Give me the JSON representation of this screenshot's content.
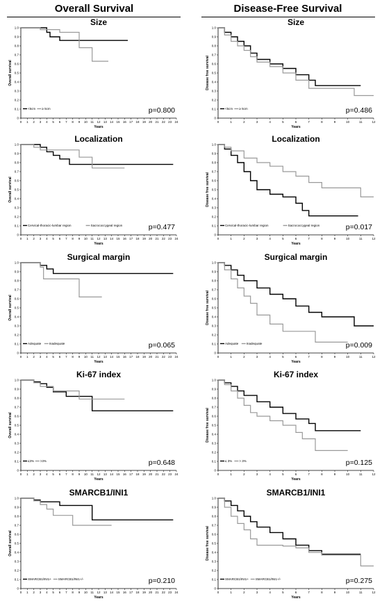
{
  "columns": {
    "left": "Overall Survival",
    "right": "Disease-Free Survival"
  },
  "style": {
    "series_colors": [
      "#000000",
      "#999999"
    ]
  },
  "chart_data": [
    {
      "type": "line",
      "title": "Size",
      "ylabel": "Overall survival",
      "xlabel": "Years",
      "p": "p=0.800",
      "xlim": [
        0,
        24
      ],
      "ylim": [
        0,
        1
      ],
      "xticks": [
        0,
        1,
        2,
        3,
        4,
        5,
        6,
        7,
        8,
        9,
        10,
        11,
        12,
        13,
        14,
        15,
        16,
        17,
        18,
        19,
        20,
        21,
        22,
        23,
        24
      ],
      "yticks": [
        "0",
        "0.1",
        "0.2",
        "0.3",
        "0.4",
        "0.5",
        "0.6",
        "0.7",
        "0.8",
        "0.9",
        "1.0"
      ],
      "legend": [
        "<5cm",
        "≥ 5cm"
      ],
      "series": [
        {
          "name": "<5cm",
          "x": [
            0,
            4,
            4.5,
            6,
            16.5
          ],
          "y": [
            1,
            0.95,
            0.9,
            0.86,
            0.86
          ]
        },
        {
          "name": "≥ 5cm",
          "x": [
            0,
            3,
            6,
            9,
            11,
            13.5
          ],
          "y": [
            1,
            0.98,
            0.95,
            0.78,
            0.63,
            0.63
          ]
        }
      ]
    },
    {
      "type": "line",
      "title": "Size",
      "ylabel": "Disease free survival",
      "xlabel": "Years",
      "p": "p=0.486",
      "xlim": [
        0,
        12
      ],
      "ylim": [
        0,
        1
      ],
      "xticks": [
        0,
        1,
        2,
        3,
        4,
        5,
        6,
        7,
        8,
        9,
        10,
        11,
        12
      ],
      "yticks": [
        "0",
        "0.1",
        "0.2",
        "0.3",
        "0.4",
        "0.5",
        "0.6",
        "0.7",
        "0.8",
        "0.9",
        "1.0"
      ],
      "legend": [
        "<5cm",
        "≥ 5cm"
      ],
      "series": [
        {
          "name": "<5cm",
          "x": [
            0,
            0.5,
            1,
            1.5,
            2,
            2.5,
            3,
            4,
            5,
            6,
            7,
            7.5,
            11
          ],
          "y": [
            1,
            0.95,
            0.9,
            0.85,
            0.8,
            0.72,
            0.65,
            0.6,
            0.55,
            0.48,
            0.42,
            0.36,
            0.36
          ]
        },
        {
          "name": "≥ 5cm",
          "x": [
            0,
            0.5,
            1,
            1.5,
            2,
            2.5,
            3,
            4,
            5,
            6,
            7,
            10.5,
            12
          ],
          "y": [
            1,
            0.92,
            0.85,
            0.8,
            0.75,
            0.68,
            0.62,
            0.57,
            0.5,
            0.42,
            0.33,
            0.25,
            0.25
          ]
        }
      ]
    },
    {
      "type": "line",
      "title": "Localization",
      "ylabel": "Overall survival",
      "xlabel": "Years",
      "p": "p=0.477",
      "xlim": [
        0,
        24
      ],
      "ylim": [
        0,
        1
      ],
      "xticks": [
        0,
        1,
        2,
        3,
        4,
        5,
        6,
        7,
        8,
        9,
        10,
        11,
        12,
        13,
        14,
        15,
        16,
        17,
        18,
        19,
        20,
        21,
        22,
        23,
        24
      ],
      "yticks": [
        "0",
        "0.1",
        "0.2",
        "0.3",
        "0.4",
        "0.5",
        "0.6",
        "0.7",
        "0.8",
        "0.9",
        "1.0"
      ],
      "legend": [
        "Cervical-thoracic-lumbar region",
        "Sacrococcygeal region"
      ],
      "series": [
        {
          "name": "Cervical-thoracic-lumbar region",
          "x": [
            0,
            3,
            4,
            5,
            6,
            7.5,
            23.5
          ],
          "y": [
            1,
            0.97,
            0.92,
            0.88,
            0.84,
            0.78,
            0.78
          ]
        },
        {
          "name": "Sacrococcygeal region",
          "x": [
            0,
            2,
            3,
            9,
            11,
            16
          ],
          "y": [
            1,
            0.97,
            0.94,
            0.86,
            0.74,
            0.74
          ]
        }
      ]
    },
    {
      "type": "line",
      "title": "Localization",
      "ylabel": "Disease free survival",
      "xlabel": "Years",
      "p": "p=0.017",
      "xlim": [
        0,
        12
      ],
      "ylim": [
        0,
        1
      ],
      "xticks": [
        0,
        1,
        2,
        3,
        4,
        5,
        6,
        7,
        8,
        9,
        10,
        11,
        12
      ],
      "yticks": [
        "0",
        "0.1",
        "0.2",
        "0.3",
        "0.4",
        "0.5",
        "0.6",
        "0.7",
        "0.8",
        "0.9",
        "1.0"
      ],
      "legend": [
        "Cervical-thoracic-lumbar region",
        "Sacrococcygeal region"
      ],
      "series": [
        {
          "name": "Cervical-thoracic-lumbar region",
          "x": [
            0,
            0.5,
            1,
            1.5,
            2,
            2.5,
            3,
            4,
            5,
            6,
            6.5,
            7,
            10.8
          ],
          "y": [
            1,
            0.95,
            0.88,
            0.8,
            0.7,
            0.6,
            0.5,
            0.45,
            0.42,
            0.35,
            0.27,
            0.21,
            0.21
          ]
        },
        {
          "name": "Sacrococcygeal region",
          "x": [
            0,
            0.5,
            1,
            2,
            3,
            4,
            5,
            6,
            7,
            8,
            10,
            11,
            12
          ],
          "y": [
            1,
            0.97,
            0.93,
            0.85,
            0.8,
            0.76,
            0.7,
            0.65,
            0.58,
            0.52,
            0.52,
            0.42,
            0.42
          ]
        }
      ]
    },
    {
      "type": "line",
      "title": "Surgical margin",
      "ylabel": "Overall survival",
      "xlabel": "Years",
      "p": "p=0.065",
      "xlim": [
        0,
        24
      ],
      "ylim": [
        0,
        1
      ],
      "xticks": [
        0,
        1,
        2,
        3,
        4,
        5,
        6,
        7,
        8,
        9,
        10,
        11,
        12,
        13,
        14,
        15,
        16,
        17,
        18,
        19,
        20,
        21,
        22,
        23,
        24
      ],
      "yticks": [
        "0",
        "0.1",
        "0.2",
        "0.3",
        "0.4",
        "0.5",
        "0.6",
        "0.7",
        "0.8",
        "0.9",
        "1.0"
      ],
      "legend": [
        "Adequate",
        "Inadequate"
      ],
      "series": [
        {
          "name": "Adequate",
          "x": [
            0,
            3,
            4,
            5,
            23.5
          ],
          "y": [
            1,
            0.97,
            0.93,
            0.88,
            0.88
          ]
        },
        {
          "name": "Inadequate",
          "x": [
            0,
            3,
            3.5,
            9,
            12.5
          ],
          "y": [
            1,
            0.95,
            0.82,
            0.62,
            0.62
          ]
        }
      ]
    },
    {
      "type": "line",
      "title": "Surgical margin",
      "ylabel": "Disease free survival",
      "xlabel": "Years",
      "p": "p=0.009",
      "xlim": [
        0,
        12
      ],
      "ylim": [
        0,
        1
      ],
      "xticks": [
        0,
        1,
        2,
        3,
        4,
        5,
        6,
        7,
        8,
        9,
        10,
        11,
        12
      ],
      "yticks": [
        "0",
        "0.1",
        "0.2",
        "0.3",
        "0.4",
        "0.5",
        "0.6",
        "0.7",
        "0.8",
        "0.9",
        "1.0"
      ],
      "legend": [
        "Adequate",
        "Inadequate"
      ],
      "series": [
        {
          "name": "Adequate",
          "x": [
            0,
            0.5,
            1,
            1.5,
            2,
            3,
            4,
            5,
            6,
            7,
            8,
            10.5,
            12
          ],
          "y": [
            1,
            0.97,
            0.92,
            0.86,
            0.8,
            0.72,
            0.65,
            0.6,
            0.52,
            0.45,
            0.4,
            0.3,
            0.3
          ]
        },
        {
          "name": "Inadequate",
          "x": [
            0,
            0.5,
            1,
            1.5,
            2,
            2.5,
            3,
            4,
            5,
            7,
            7.5,
            10
          ],
          "y": [
            1,
            0.92,
            0.82,
            0.72,
            0.63,
            0.55,
            0.42,
            0.32,
            0.24,
            0.24,
            0.12,
            0.12
          ]
        }
      ]
    },
    {
      "type": "line",
      "title": "Ki-67 index",
      "ylabel": "Overall survival",
      "xlabel": "Years",
      "p": "p=0.648",
      "xlim": [
        0,
        24
      ],
      "ylim": [
        0,
        1
      ],
      "xticks": [
        0,
        1,
        2,
        3,
        4,
        5,
        6,
        7,
        8,
        9,
        10,
        11,
        12,
        13,
        14,
        15,
        16,
        17,
        18,
        19,
        20,
        21,
        22,
        23,
        24
      ],
      "yticks": [
        "0",
        "0.1",
        "0.2",
        "0.3",
        "0.4",
        "0.5",
        "0.6",
        "0.7",
        "0.8",
        "0.9",
        "1.0"
      ],
      "legend": [
        "≤3%",
        ">3%"
      ],
      "series": [
        {
          "name": "≤3%",
          "x": [
            0,
            2,
            3,
            4,
            5,
            7,
            11,
            23.5
          ],
          "y": [
            1,
            0.98,
            0.96,
            0.92,
            0.87,
            0.82,
            0.66,
            0.66
          ]
        },
        {
          "name": ">3%",
          "x": [
            0,
            2,
            3,
            5,
            9,
            16
          ],
          "y": [
            1,
            0.97,
            0.93,
            0.88,
            0.79,
            0.79
          ]
        }
      ]
    },
    {
      "type": "line",
      "title": "Ki-67 index",
      "ylabel": "Disease free survival",
      "xlabel": "Years",
      "p": "p=0.125",
      "xlim": [
        0,
        12
      ],
      "ylim": [
        0,
        1
      ],
      "xticks": [
        0,
        1,
        2,
        3,
        4,
        5,
        6,
        7,
        8,
        9,
        10,
        11,
        12
      ],
      "yticks": [
        "0",
        "0.1",
        "0.2",
        "0.3",
        "0.4",
        "0.5",
        "0.6",
        "0.7",
        "0.8",
        "0.9",
        "1.0"
      ],
      "legend": [
        "≤ 3%",
        "> 3%"
      ],
      "series": [
        {
          "name": "≤ 3%",
          "x": [
            0,
            0.5,
            1,
            1.5,
            2,
            3,
            4,
            5,
            6,
            7,
            7.5,
            11
          ],
          "y": [
            1,
            0.97,
            0.93,
            0.88,
            0.83,
            0.76,
            0.7,
            0.63,
            0.57,
            0.52,
            0.44,
            0.44
          ]
        },
        {
          "name": "> 3%",
          "x": [
            0,
            0.5,
            1,
            1.5,
            2,
            2.5,
            3,
            4,
            5,
            6,
            6.5,
            7.5,
            10
          ],
          "y": [
            1,
            0.95,
            0.88,
            0.8,
            0.72,
            0.64,
            0.6,
            0.55,
            0.5,
            0.42,
            0.35,
            0.22,
            0.22
          ]
        }
      ]
    },
    {
      "type": "line",
      "title": "SMARCB1/INI1",
      "ylabel": "Overall survival",
      "xlabel": "Years",
      "p": "p=0.210",
      "xlim": [
        0,
        24
      ],
      "ylim": [
        0,
        1
      ],
      "xticks": [
        0,
        1,
        2,
        3,
        4,
        5,
        6,
        7,
        8,
        9,
        10,
        11,
        12,
        13,
        14,
        15,
        16,
        17,
        18,
        19,
        20,
        21,
        22,
        23,
        24
      ],
      "yticks": [
        "0",
        "0.1",
        "0.2",
        "0.3",
        "0.4",
        "0.5",
        "0.6",
        "0.7",
        "0.8",
        "0.9",
        "1.0"
      ],
      "legend": [
        "SMARCB1/INI1+",
        "SMARCB1/INI1+/-"
      ],
      "series": [
        {
          "name": "SMARCB1/INI1+",
          "x": [
            0,
            2,
            3,
            6,
            11,
            23.5
          ],
          "y": [
            1,
            0.98,
            0.96,
            0.92,
            0.76,
            0.76
          ]
        },
        {
          "name": "SMARCB1/INI1+/-",
          "x": [
            0,
            2,
            3,
            4,
            5,
            8,
            14
          ],
          "y": [
            1,
            0.97,
            0.93,
            0.88,
            0.81,
            0.7,
            0.7
          ]
        }
      ]
    },
    {
      "type": "line",
      "title": "SMARCB1/INI1",
      "ylabel": "Disease free survival",
      "xlabel": "Years",
      "p": "p=0.275",
      "xlim": [
        0,
        12
      ],
      "ylim": [
        0,
        1
      ],
      "xticks": [
        0,
        1,
        2,
        3,
        4,
        5,
        6,
        7,
        8,
        9,
        10,
        11,
        12
      ],
      "yticks": [
        "0",
        "0.1",
        "0.2",
        "0.3",
        "0.4",
        "0.5",
        "0.6",
        "0.7",
        "0.8",
        "0.9",
        "1.0"
      ],
      "legend": [
        "SMARCB1/INI1+",
        "SMARCB1/INI1+/-"
      ],
      "series": [
        {
          "name": "SMARCB1/INI1+",
          "x": [
            0,
            0.5,
            1,
            1.5,
            2,
            2.5,
            3,
            4,
            5,
            6,
            7,
            8,
            11
          ],
          "y": [
            1,
            0.97,
            0.92,
            0.86,
            0.8,
            0.74,
            0.68,
            0.62,
            0.55,
            0.48,
            0.42,
            0.38,
            0.38
          ]
        },
        {
          "name": "SMARCB1/INI1+/-",
          "x": [
            0,
            0.5,
            1,
            1.5,
            2,
            2.5,
            3,
            5,
            6,
            7,
            8,
            11,
            12
          ],
          "y": [
            1,
            0.9,
            0.8,
            0.72,
            0.65,
            0.55,
            0.48,
            0.47,
            0.45,
            0.4,
            0.37,
            0.25,
            0.25
          ]
        }
      ]
    }
  ]
}
